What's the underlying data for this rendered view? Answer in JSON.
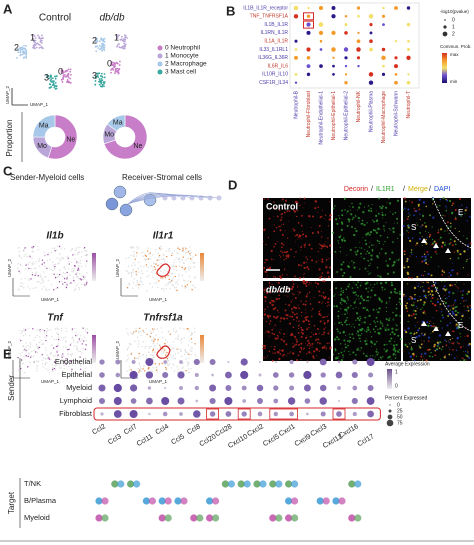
{
  "panel_a": {
    "label": "A",
    "groups": [
      "Control",
      "db/db"
    ],
    "clusters_control": [
      "2",
      "1",
      "0",
      "3"
    ],
    "clusters_dbdb": [
      "2",
      "1",
      "0",
      "3"
    ],
    "legend": [
      "0 Neutrophil",
      "1 Monocyte",
      "2 Macrophage",
      "3 Mast cell"
    ],
    "x_axis": "UMAP_1",
    "y_axis": "UMAP_2",
    "proportion_label": "Proportion",
    "pie_control": [
      "Ne",
      "Mo",
      "Ma"
    ],
    "pie_dbdb": [
      "Ne",
      "Mo",
      "Ma"
    ]
  },
  "panel_b": {
    "label": "B",
    "rows": [
      "IL1B_IL1R_receptor",
      "TNF_TNFRSF1A",
      "IL1B_IL1R",
      "IL1RN_IL1R",
      "IL1A_IL1R",
      "IL33_IL1RL1",
      "IL36G_IL36R",
      "IL6R_IL6",
      "IL10R_IL10",
      "CSF1R_IL34"
    ],
    "columns": [
      "Neutrophil-B",
      "Neutrophil-Fibroblast",
      "Neutrophil-Endothelial-1",
      "Neutrophil-Epithelial-1",
      "Neutrophil-Epithelial-2",
      "Neutrophil-NK",
      "Neutrophil-Plasma",
      "Neutrophil-Macrophage",
      "Neutrophil-Schwann",
      "Neutrophil-T"
    ],
    "size_title": "-log10(pvalue)",
    "size_ticks": [
      "0",
      "1",
      "2"
    ],
    "color_title": "Commun. Prob.",
    "color_ticks": [
      "max",
      "min"
    ]
  },
  "panel_c": {
    "label": "C",
    "sender": "Sender-Myeloid cells",
    "receiver": "Receiver-Stromal cells",
    "genes": [
      "Il1b",
      "Il1r1",
      "Tnf",
      "Tnfrsf1a"
    ],
    "x_axis": "UMAP_1",
    "y_axis": "UMAP_2"
  },
  "panel_d": {
    "label": "D",
    "stains": [
      "Decorin",
      "IL1R1",
      "Merge",
      "DAPI"
    ],
    "separator": "/",
    "rows": [
      "Control",
      "db/db"
    ],
    "region_e": "E",
    "region_s": "S"
  },
  "panel_e": {
    "label": "E",
    "sender_title": "Sender",
    "senders": [
      "Endothelial",
      "Epithelial",
      "Myeloid",
      "Lymphoid",
      "Fibroblast"
    ],
    "genes": [
      "Ccl2",
      "Ccl3",
      "Ccl7",
      "Ccl11",
      "Ccl4",
      "Ccl5",
      "Ccl8",
      "Ccl20",
      "Ccl28",
      "Cxcl10",
      "Cxcl2",
      "Cxcl5",
      "Cxcl1",
      "Cxcl9",
      "Cxcl3",
      "Cxcl12",
      "Cxcl16",
      "Ccl17"
    ],
    "avg_title": "Average Expression",
    "avg_ticks": [
      "1",
      "0"
    ],
    "pct_title": "Percent Expressed",
    "pct_ticks": [
      "0",
      "25",
      "50",
      "75"
    ],
    "target_title": "Target",
    "targets": [
      "T/NK",
      "B/Plasma",
      "Myeloid"
    ]
  }
}
